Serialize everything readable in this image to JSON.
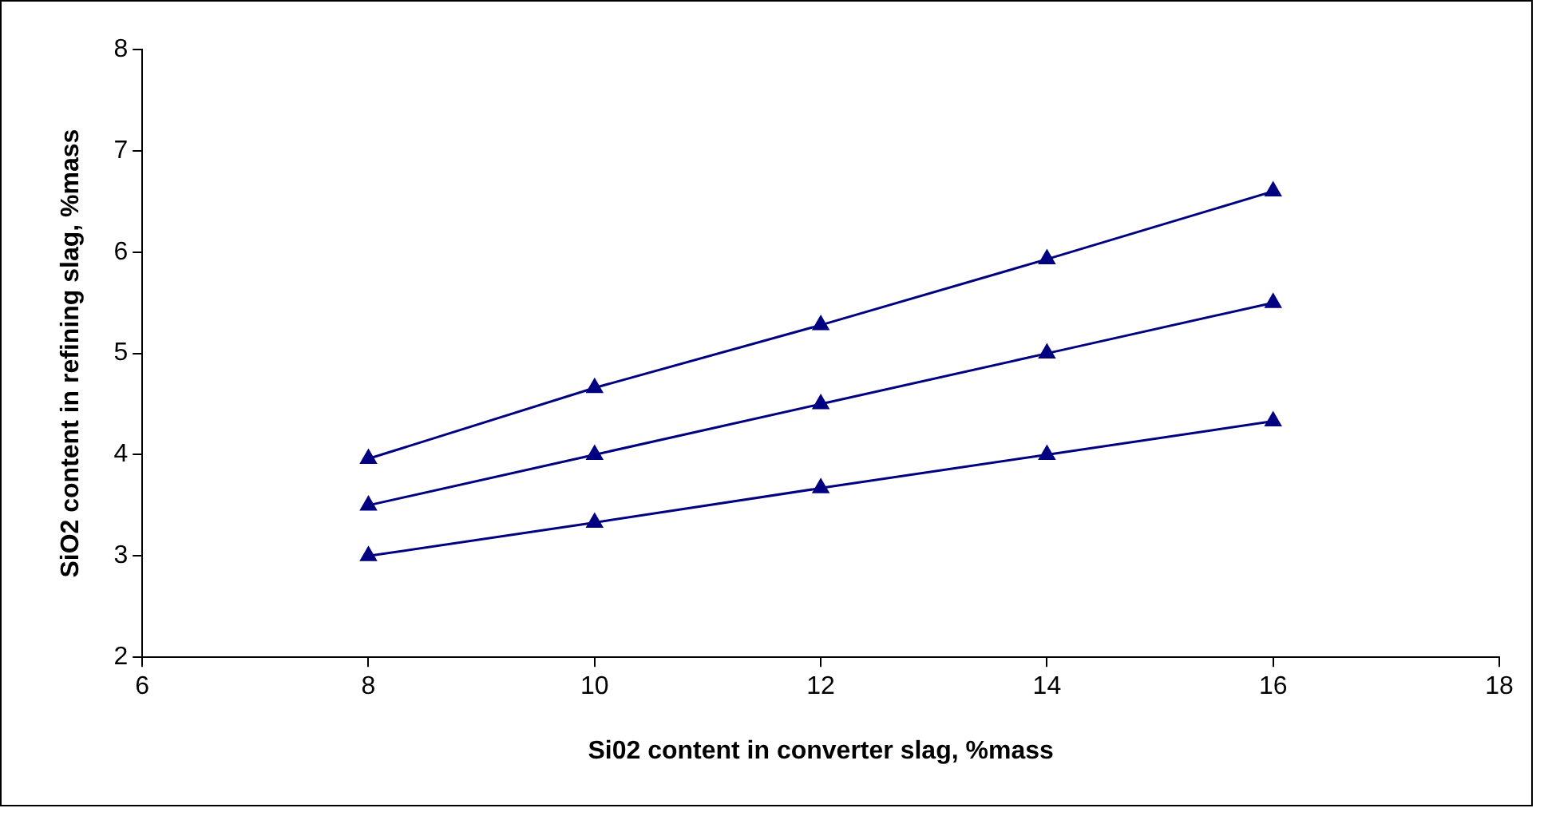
{
  "chart_data": {
    "type": "line",
    "xlabel": "Si02 content in converter slag, %mass",
    "ylabel": "SiO2 content in refining slag, %mass",
    "xlim": [
      6,
      18
    ],
    "xticks": [
      6,
      8,
      10,
      12,
      14,
      16,
      18
    ],
    "ylim": [
      2,
      8
    ],
    "yticks": [
      2,
      3,
      4,
      5,
      6,
      7,
      8
    ],
    "grid": false,
    "legend": false,
    "marker": "triangle",
    "line_style": "solid",
    "x": [
      8,
      10,
      12,
      14,
      16
    ],
    "series": [
      {
        "color": "#000080",
        "values": [
          3.96,
          4.66,
          5.28,
          5.93,
          6.6
        ]
      },
      {
        "color": "#000080",
        "values": [
          3.5,
          4,
          4.5,
          5,
          5.5
        ]
      },
      {
        "color": "#000080",
        "values": [
          3,
          3.33,
          3.67,
          4,
          4.33
        ]
      }
    ]
  }
}
